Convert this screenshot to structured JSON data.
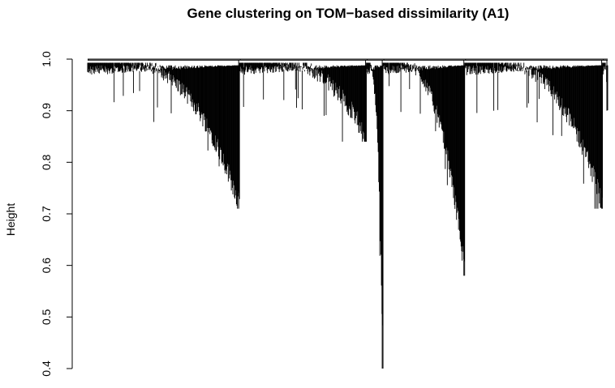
{
  "chart_data": {
    "type": "dendrogram",
    "title": "Gene clustering on TOM−based dissimilarity (A1)",
    "xlabel": "",
    "ylabel": "Height",
    "ylim": [
      0.4,
      1.0
    ],
    "yticks": [
      0.4,
      0.5,
      0.6,
      0.7,
      0.8,
      0.9,
      1.0
    ],
    "ytick_labels": [
      "0.4",
      "0.5",
      "0.6",
      "0.7",
      "0.8",
      "0.9",
      "1.0"
    ],
    "grid": false,
    "legend": "none",
    "line_color": "#000000",
    "top_merge_height": 1.0,
    "clusters": [
      {
        "start": 0.0,
        "end": 0.292,
        "floor": 0.71,
        "merge": 0.998
      },
      {
        "start": 0.292,
        "end": 0.536,
        "floor": 0.84,
        "merge": 0.998
      },
      {
        "start": 0.536,
        "end": 0.568,
        "floor": 0.4,
        "merge": 0.998
      },
      {
        "start": 0.568,
        "end": 0.725,
        "floor": 0.58,
        "merge": 0.998
      },
      {
        "start": 0.725,
        "end": 0.99,
        "floor": 0.71,
        "merge": 0.998
      },
      {
        "start": 0.99,
        "end": 1.0,
        "floor": 0.9,
        "merge": 0.998
      }
    ]
  }
}
